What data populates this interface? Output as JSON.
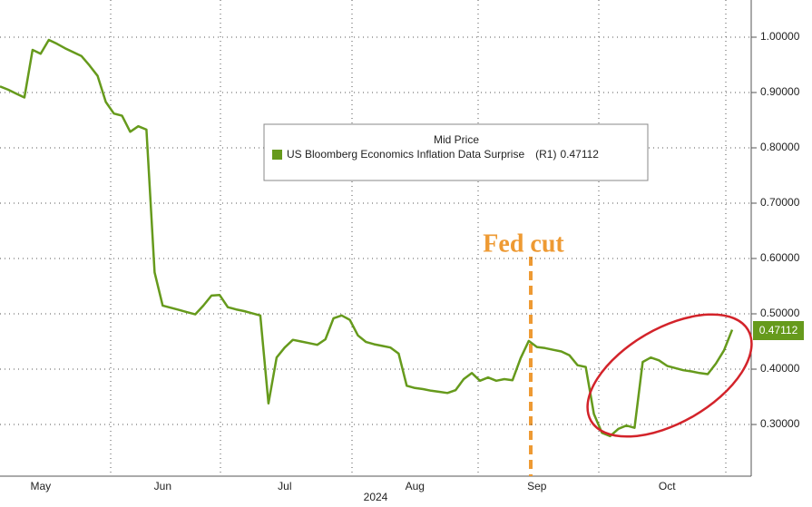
{
  "chart_data": {
    "type": "line",
    "legend_title": "Mid Price",
    "legend_suffix": "(R1)",
    "xlabel": "2024",
    "annotation": "Fed cut",
    "categories": [
      null,
      null,
      null,
      null,
      null,
      "May",
      null,
      null,
      null,
      null,
      null,
      null,
      null,
      null,
      null,
      null,
      null,
      null,
      null,
      null,
      "Jun",
      null,
      null,
      null,
      null,
      null,
      null,
      null,
      null,
      null,
      null,
      null,
      null,
      null,
      null,
      "Jul",
      null,
      null,
      null,
      null,
      null,
      null,
      null,
      null,
      null,
      null,
      null,
      null,
      null,
      null,
      null,
      "Aug",
      null,
      null,
      null,
      null,
      null,
      null,
      null,
      null,
      null,
      null,
      null,
      null,
      null,
      null,
      "Sep",
      null,
      null,
      null,
      null,
      null,
      null,
      null,
      null,
      null,
      null,
      null,
      null,
      null,
      null,
      null,
      "Oct",
      null,
      null,
      null,
      null,
      null,
      null,
      null,
      null
    ],
    "series": [
      {
        "name": "US Bloomberg Economics Inflation Data Surprise",
        "color": "#669a1c",
        "values": [
          0.911,
          0.905,
          0.898,
          0.891,
          0.977,
          0.97,
          0.995,
          0.988,
          0.98,
          0.973,
          0.966,
          0.949,
          0.93,
          0.883,
          0.862,
          0.858,
          0.829,
          0.839,
          0.833,
          0.575,
          0.515,
          0.511,
          0.507,
          0.503,
          0.499,
          0.515,
          0.533,
          0.534,
          0.512,
          0.508,
          0.505,
          0.501,
          0.497,
          0.338,
          0.421,
          0.439,
          0.453,
          0.45,
          0.447,
          0.444,
          0.454,
          0.492,
          0.497,
          0.489,
          0.461,
          0.449,
          0.445,
          0.442,
          0.439,
          0.428,
          0.37,
          0.366,
          0.364,
          0.361,
          0.359,
          0.357,
          0.362,
          0.382,
          0.393,
          0.379,
          0.385,
          0.379,
          0.382,
          0.38,
          0.42,
          0.451,
          0.44,
          0.438,
          0.435,
          0.432,
          0.425,
          0.407,
          0.404,
          0.319,
          0.285,
          0.279,
          0.292,
          0.298,
          0.294,
          0.413,
          0.421,
          0.416,
          0.406,
          0.402,
          0.398,
          0.396,
          0.393,
          0.391,
          0.41,
          0.434,
          0.47112
        ]
      }
    ],
    "ylim": [
      0.2066,
      1.0672
    ],
    "yticks": [
      {
        "value": 0.3,
        "label": "0.30000"
      },
      {
        "value": 0.4,
        "label": "0.40000"
      },
      {
        "value": 0.5,
        "label": "0.50000"
      },
      {
        "value": 0.6,
        "label": "0.60000"
      },
      {
        "value": 0.7,
        "label": "0.70000"
      },
      {
        "value": 0.8,
        "label": "0.80000"
      },
      {
        "value": 0.9,
        "label": "0.90000"
      },
      {
        "value": 1.0,
        "label": "1.00000"
      }
    ],
    "grid": true
  }
}
